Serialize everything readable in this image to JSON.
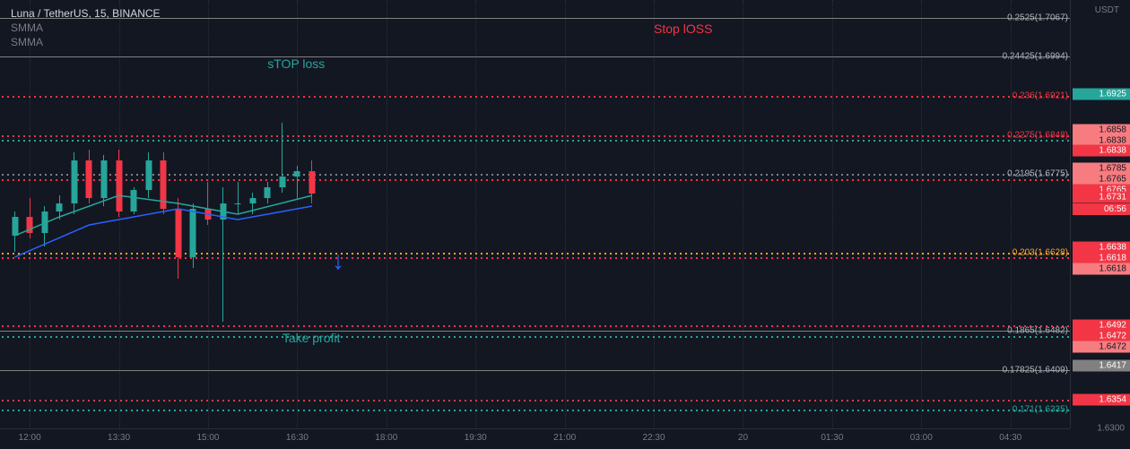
{
  "header": {
    "title": "Luna / TetherUS, 15, BINANCE",
    "indicators": [
      "SMMA",
      "SMMA"
    ]
  },
  "yaxis": {
    "unit": "USDT",
    "min": 1.63,
    "max": 1.71,
    "gridLabels": [
      {
        "value": 1.63,
        "text": "1.6300"
      }
    ],
    "priceBoxes": [
      {
        "value": 1.6925,
        "text": "1.6925",
        "cls": "current"
      },
      {
        "value": 1.6858,
        "text": "1.6858",
        "cls": "pink"
      },
      {
        "value": 1.68581,
        "text": "1.6858",
        "cls": "red",
        "offset": 12
      },
      {
        "value": 1.6838,
        "text": "1.6838",
        "cls": "pink"
      },
      {
        "value": 1.68381,
        "text": "1.6838",
        "cls": "red",
        "offset": 12
      },
      {
        "value": 1.6785,
        "text": "1.6785",
        "cls": "pink"
      },
      {
        "value": 1.67851,
        "text": "1.6785",
        "cls": "red",
        "offset": 12
      },
      {
        "value": 1.6765,
        "text": "1.6765",
        "cls": "pink"
      },
      {
        "value": 1.67651,
        "text": "1.6765",
        "cls": "red",
        "offset": 12
      },
      {
        "value": 1.6731,
        "text": "1.6731",
        "cls": "red"
      },
      {
        "value": 1.6638,
        "text": "1.6638",
        "cls": "red"
      },
      {
        "value": 1.66381,
        "text": "1.6638",
        "cls": "pink",
        "offset": 12
      },
      {
        "value": 1.6618,
        "text": "1.6618",
        "cls": "red"
      },
      {
        "value": 1.66181,
        "text": "1.6618",
        "cls": "pink",
        "offset": 12
      },
      {
        "value": 1.6492,
        "text": "1.6492",
        "cls": "red"
      },
      {
        "value": 1.64921,
        "text": "1.6492",
        "cls": "pink",
        "offset": 12
      },
      {
        "value": 1.6472,
        "text": "1.6472",
        "cls": "red"
      },
      {
        "value": 1.64721,
        "text": "1.6472",
        "cls": "pink",
        "offset": 12
      },
      {
        "value": 1.6417,
        "text": "1.6417",
        "cls": "gray"
      },
      {
        "value": 1.6354,
        "text": "1.6354",
        "cls": "red"
      }
    ],
    "countdown": {
      "value": 1.6731,
      "text": "06:56"
    }
  },
  "xaxis": {
    "minMinutes": 690,
    "maxMinutes": 1770,
    "labels": [
      {
        "minutes": 720,
        "text": "12:00"
      },
      {
        "minutes": 810,
        "text": "13:30"
      },
      {
        "minutes": 900,
        "text": "15:00"
      },
      {
        "minutes": 990,
        "text": "16:30"
      },
      {
        "minutes": 1080,
        "text": "18:00"
      },
      {
        "minutes": 1170,
        "text": "19:30"
      },
      {
        "minutes": 1260,
        "text": "21:00"
      },
      {
        "minutes": 1350,
        "text": "22:30"
      },
      {
        "minutes": 1440,
        "text": "20"
      },
      {
        "minutes": 1530,
        "text": "01:30"
      },
      {
        "minutes": 1620,
        "text": "03:00"
      },
      {
        "minutes": 1710,
        "text": "04:30"
      }
    ]
  },
  "fibLevels": [
    {
      "value": 1.7067,
      "label": "0.2525(1.7067)",
      "color": "#808080",
      "solid": true
    },
    {
      "value": 1.6994,
      "label": "0.24425(1.6994)",
      "color": "#808080",
      "solid": true
    },
    {
      "value": 1.6921,
      "label": "0.236(1.6921)",
      "color": "#f23645"
    },
    {
      "value": 1.6848,
      "label": "0.2275(1.6848)",
      "color": "#f23645"
    },
    {
      "value": 1.6839,
      "label": "",
      "color": "#26a69a"
    },
    {
      "value": 1.6775,
      "label": "0.2195(1.6775)",
      "color": "#808080"
    },
    {
      "value": 1.6766,
      "label": "",
      "color": "#f23645"
    },
    {
      "value": 1.6628,
      "label": "0.203(1.6628)",
      "color": "#ffa726"
    },
    {
      "value": 1.6619,
      "label": "",
      "color": "#f23645"
    },
    {
      "value": 1.6492,
      "label": "",
      "color": "#f23645"
    },
    {
      "value": 1.6482,
      "label": "0.1865(1.6482)",
      "color": "#808080",
      "solid": true
    },
    {
      "value": 1.6473,
      "label": "",
      "color": "#26a69a"
    },
    {
      "value": 1.6409,
      "label": "0.17825(1.6409)",
      "color": "#808080",
      "solid": true
    },
    {
      "value": 1.6354,
      "label": "",
      "color": "#f23645"
    },
    {
      "value": 1.6335,
      "label": "0.171(1.6335)",
      "color": "#26a69a"
    }
  ],
  "annotations": [
    {
      "text": "Stop lOSS",
      "xMinutes": 1350,
      "yValue": 1.706,
      "color": "#f23645"
    },
    {
      "text": "sTOP loss",
      "xMinutes": 960,
      "yValue": 1.6994,
      "color": "#26a69a"
    },
    {
      "text": "Take profit",
      "xMinutes": 975,
      "yValue": 1.6482,
      "color": "#26a69a"
    }
  ],
  "arrow": {
    "xMinutes": 1025,
    "yValue": 1.664
  },
  "candles": [
    {
      "t": 705,
      "o": 1.666,
      "h": 1.6705,
      "l": 1.663,
      "c": 1.6695
    },
    {
      "t": 720,
      "o": 1.6695,
      "h": 1.673,
      "l": 1.6655,
      "c": 1.6665
    },
    {
      "t": 735,
      "o": 1.6665,
      "h": 1.6715,
      "l": 1.664,
      "c": 1.6705
    },
    {
      "t": 750,
      "o": 1.6705,
      "h": 1.6735,
      "l": 1.669,
      "c": 1.672
    },
    {
      "t": 765,
      "o": 1.672,
      "h": 1.6815,
      "l": 1.67,
      "c": 1.68
    },
    {
      "t": 780,
      "o": 1.68,
      "h": 1.682,
      "l": 1.672,
      "c": 1.673
    },
    {
      "t": 795,
      "o": 1.673,
      "h": 1.681,
      "l": 1.6715,
      "c": 1.68
    },
    {
      "t": 810,
      "o": 1.68,
      "h": 1.682,
      "l": 1.6695,
      "c": 1.6705
    },
    {
      "t": 825,
      "o": 1.6705,
      "h": 1.675,
      "l": 1.67,
      "c": 1.6745
    },
    {
      "t": 840,
      "o": 1.6745,
      "h": 1.6815,
      "l": 1.673,
      "c": 1.68
    },
    {
      "t": 855,
      "o": 1.68,
      "h": 1.6815,
      "l": 1.67,
      "c": 1.671
    },
    {
      "t": 870,
      "o": 1.671,
      "h": 1.673,
      "l": 1.658,
      "c": 1.662
    },
    {
      "t": 885,
      "o": 1.662,
      "h": 1.672,
      "l": 1.66,
      "c": 1.671
    },
    {
      "t": 900,
      "o": 1.671,
      "h": 1.676,
      "l": 1.668,
      "c": 1.669
    },
    {
      "t": 915,
      "o": 1.669,
      "h": 1.675,
      "l": 1.65,
      "c": 1.672
    },
    {
      "t": 930,
      "o": 1.672,
      "h": 1.676,
      "l": 1.67,
      "c": 1.672
    },
    {
      "t": 945,
      "o": 1.672,
      "h": 1.674,
      "l": 1.67,
      "c": 1.673
    },
    {
      "t": 960,
      "o": 1.673,
      "h": 1.676,
      "l": 1.672,
      "c": 1.675
    },
    {
      "t": 975,
      "o": 1.675,
      "h": 1.687,
      "l": 1.674,
      "c": 1.677
    },
    {
      "t": 990,
      "o": 1.677,
      "h": 1.679,
      "l": 1.673,
      "c": 1.678
    },
    {
      "t": 1005,
      "o": 1.678,
      "h": 1.68,
      "l": 1.672,
      "c": 1.6738
    }
  ],
  "ma": {
    "green": {
      "color": "#26a69a",
      "points": [
        {
          "t": 705,
          "v": 1.666
        },
        {
          "t": 750,
          "v": 1.6695
        },
        {
          "t": 810,
          "v": 1.6735
        },
        {
          "t": 870,
          "v": 1.672
        },
        {
          "t": 930,
          "v": 1.67
        },
        {
          "t": 1005,
          "v": 1.6735
        }
      ]
    },
    "blue": {
      "color": "#2962ff",
      "points": [
        {
          "t": 705,
          "v": 1.662
        },
        {
          "t": 780,
          "v": 1.668
        },
        {
          "t": 870,
          "v": 1.671
        },
        {
          "t": 930,
          "v": 1.669
        },
        {
          "t": 1005,
          "v": 1.6715
        }
      ]
    }
  },
  "colors": {
    "up": "#26a69a",
    "down": "#f23645",
    "bg": "#131722"
  }
}
